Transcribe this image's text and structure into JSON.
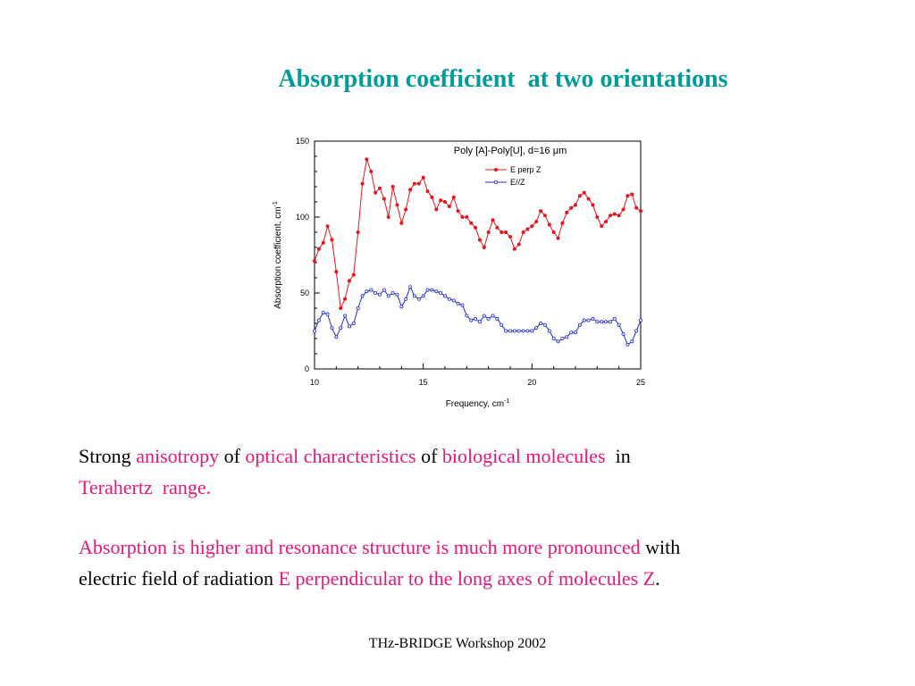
{
  "title": "Absorption coefficient  at two orientations",
  "title_color": "#009b9b",
  "text_blocks": [
    {
      "lines": [
        [
          {
            "text": "Strong ",
            "color": "#000000"
          },
          {
            "text": "anisotropy",
            "color": "#e5177b"
          },
          {
            "text": " of ",
            "color": "#000000"
          },
          {
            "text": "optical characteristics",
            "color": "#e5177b"
          },
          {
            "text": " of ",
            "color": "#000000"
          },
          {
            "text": "biological molecules",
            "color": "#e5177b"
          },
          {
            "text": "  in",
            "color": "#000000"
          }
        ],
        [
          {
            "text": "Terahertz  range.",
            "color": "#e5177b"
          }
        ]
      ]
    },
    {
      "lines": [
        [
          {
            "text": "Absorption is higher and resonance structure is much more pronounced",
            "color": "#e5177b"
          },
          {
            "text": " with",
            "color": "#000000"
          }
        ],
        [
          {
            "text": "electric field of radiation ",
            "color": "#000000"
          },
          {
            "text": "E perpendicular to the long axes of molecules Z",
            "color": "#e5177b"
          },
          {
            "text": ".",
            "color": "#000000"
          }
        ]
      ]
    }
  ],
  "footer": "THz-BRIDGE Workshop 2002",
  "chart_data": {
    "type": "line",
    "title": "Poly [A]-Poly[U], d=16 μm",
    "xlabel": {
      "text": "Frequency, cm",
      "superscript": "-1"
    },
    "ylabel": {
      "text": "Absorption coefficient, cm",
      "superscript": "-1"
    },
    "xlim": [
      10,
      25
    ],
    "xticks": [
      10,
      15,
      20,
      25
    ],
    "xticks_minor": [
      11,
      12,
      13,
      14,
      16,
      17,
      18,
      19,
      21,
      22,
      23,
      24
    ],
    "ylim": [
      0,
      150
    ],
    "yticks": [
      0,
      50,
      100,
      150
    ],
    "yticks_minor": [
      10,
      20,
      30,
      40,
      60,
      70,
      80,
      90,
      110,
      120,
      130,
      140
    ],
    "legend": "top-right",
    "x": [
      10,
      10.2,
      10.4,
      10.6,
      10.8,
      11,
      11.2,
      11.4,
      11.6,
      11.8,
      12,
      12.2,
      12.4,
      12.6,
      12.8,
      13,
      13.2,
      13.4,
      13.6,
      13.8,
      14,
      14.2,
      14.4,
      14.6,
      14.8,
      15,
      15.2,
      15.4,
      15.6,
      15.8,
      16,
      16.2,
      16.4,
      16.6,
      16.8,
      17,
      17.2,
      17.4,
      17.6,
      17.8,
      18,
      18.2,
      18.4,
      18.6,
      18.8,
      19,
      19.2,
      19.4,
      19.6,
      19.8,
      20,
      20.2,
      20.4,
      20.6,
      20.8,
      21,
      21.2,
      21.4,
      21.6,
      21.8,
      22,
      22.2,
      22.4,
      22.6,
      22.8,
      23,
      23.2,
      23.4,
      23.6,
      23.8,
      24,
      24.2,
      24.4,
      24.6,
      24.8,
      25
    ],
    "series": [
      {
        "name": "E perp Z",
        "color": "#e8141c",
        "marker": "filled",
        "values": [
          71,
          79,
          83,
          94,
          85,
          64,
          40,
          46,
          58,
          62,
          90,
          122,
          138,
          130,
          116,
          119,
          112,
          100,
          120,
          108,
          96,
          105,
          118,
          122,
          122,
          126,
          117,
          113,
          105,
          111,
          110,
          107,
          113,
          104,
          100,
          100,
          96,
          93,
          85,
          80,
          90,
          98,
          93,
          90,
          90,
          87,
          79,
          82,
          90,
          92,
          94,
          97,
          104,
          101,
          95,
          90,
          86,
          96,
          103,
          106,
          108,
          114,
          116,
          112,
          108,
          100,
          94,
          97,
          101,
          102,
          101,
          105,
          114,
          115,
          106,
          104
        ]
      },
      {
        "name": "E//Z",
        "color": "#1f2ad8",
        "marker": "open",
        "values": [
          25,
          32,
          37,
          36,
          27,
          21,
          27,
          35,
          28,
          30,
          40,
          48,
          51,
          52,
          50,
          49,
          52,
          48,
          50,
          49,
          41,
          46,
          54,
          48,
          46,
          48,
          52,
          52,
          51,
          50,
          48,
          46,
          45,
          43,
          42,
          35,
          32,
          33,
          31,
          35,
          33,
          35,
          33,
          29,
          25,
          25,
          25,
          25,
          25,
          25,
          25,
          27,
          30,
          29,
          25,
          20,
          18,
          20,
          21,
          24,
          24,
          29,
          32,
          32,
          33,
          31,
          31,
          31,
          31,
          33,
          29,
          23,
          16,
          18,
          25,
          32
        ]
      }
    ]
  }
}
